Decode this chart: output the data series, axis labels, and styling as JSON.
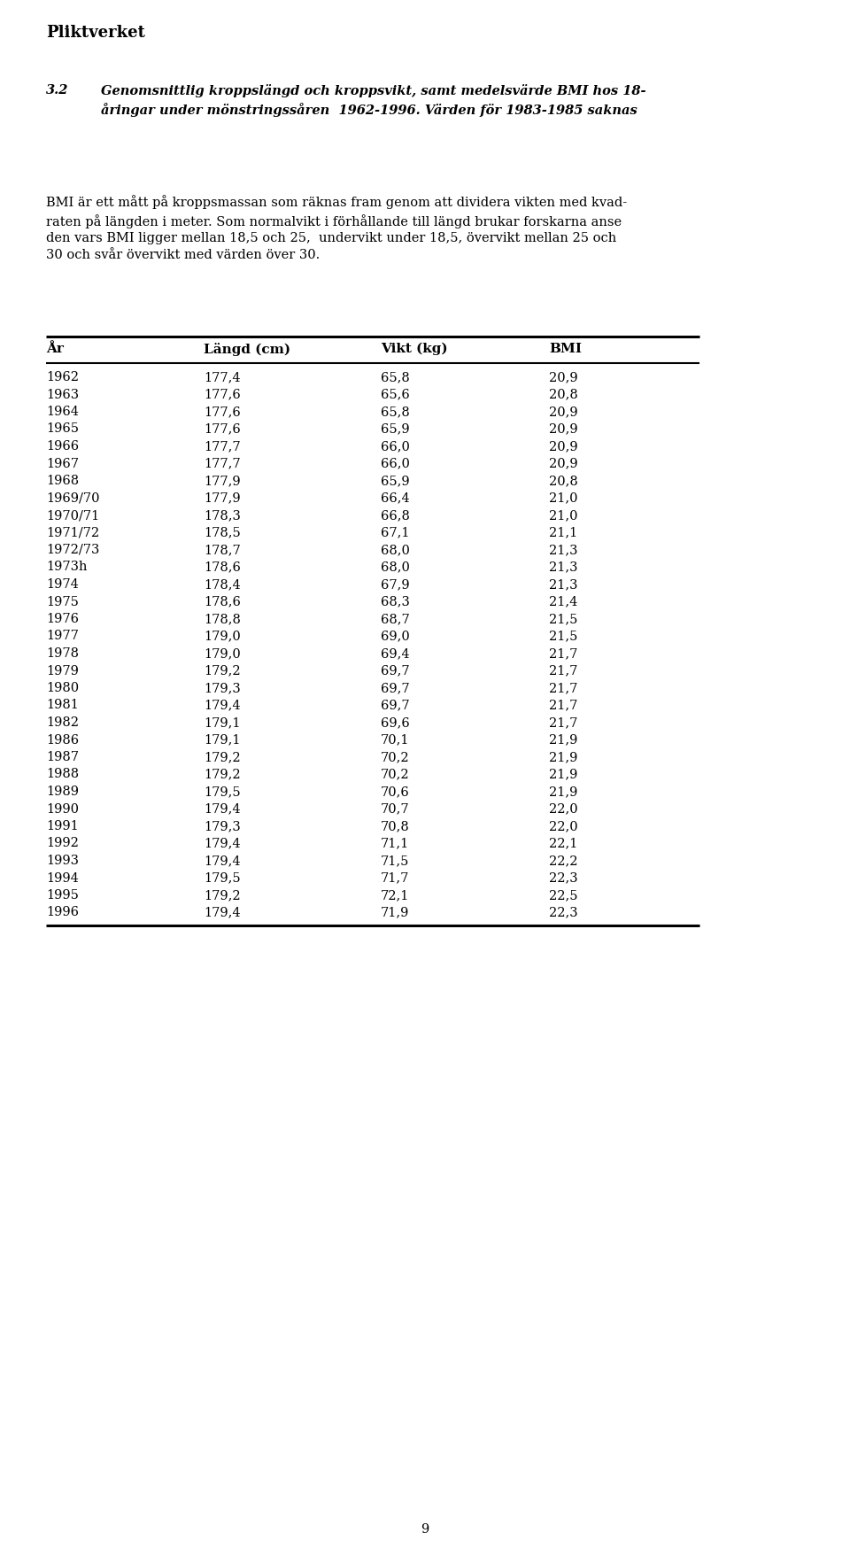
{
  "header": "Pliktverket",
  "title_num": "3.2",
  "title_text": "Genomsnittlig kroppslängd och kroppsvikt, samt medelsvärde BMI hos 18-\nåringar under mönstringssåren  1962-1996. Värden för 1983-1985 saknas",
  "body_text": "BMI är ett mått på kroppsmassan som räknas fram genom att dividera vikten med kvad-\nraten på längden i meter. Som normalvikt i förhållande till längd brukar forskarna anse\nden vars BMI ligger mellan 18,5 och 25,  undervikt under 18,5, övervikt mellan 25 och\n30 och svår övervikt med värden över 30.",
  "col_headers": [
    "År",
    "Längd (cm)",
    "Vikt (kg)",
    "BMI"
  ],
  "rows": [
    [
      "1962",
      "177,4",
      "65,8",
      "20,9"
    ],
    [
      "1963",
      "177,6",
      "65,6",
      "20,8"
    ],
    [
      "1964",
      "177,6",
      "65,8",
      "20,9"
    ],
    [
      "1965",
      "177,6",
      "65,9",
      "20,9"
    ],
    [
      "1966",
      "177,7",
      "66,0",
      "20,9"
    ],
    [
      "1967",
      "177,7",
      "66,0",
      "20,9"
    ],
    [
      "1968",
      "177,9",
      "65,9",
      "20,8"
    ],
    [
      "1969/70",
      "177,9",
      "66,4",
      "21,0"
    ],
    [
      "1970/71",
      "178,3",
      "66,8",
      "21,0"
    ],
    [
      "1971/72",
      "178,5",
      "67,1",
      "21,1"
    ],
    [
      "1972/73",
      "178,7",
      "68,0",
      "21,3"
    ],
    [
      "1973h",
      "178,6",
      "68,0",
      "21,3"
    ],
    [
      "1974",
      "178,4",
      "67,9",
      "21,3"
    ],
    [
      "1975",
      "178,6",
      "68,3",
      "21,4"
    ],
    [
      "1976",
      "178,8",
      "68,7",
      "21,5"
    ],
    [
      "1977",
      "179,0",
      "69,0",
      "21,5"
    ],
    [
      "1978",
      "179,0",
      "69,4",
      "21,7"
    ],
    [
      "1979",
      "179,2",
      "69,7",
      "21,7"
    ],
    [
      "1980",
      "179,3",
      "69,7",
      "21,7"
    ],
    [
      "1981",
      "179,4",
      "69,7",
      "21,7"
    ],
    [
      "1982",
      "179,1",
      "69,6",
      "21,7"
    ],
    [
      "1986",
      "179,1",
      "70,1",
      "21,9"
    ],
    [
      "1987",
      "179,2",
      "70,2",
      "21,9"
    ],
    [
      "1988",
      "179,2",
      "70,2",
      "21,9"
    ],
    [
      "1989",
      "179,5",
      "70,6",
      "21,9"
    ],
    [
      "1990",
      "179,4",
      "70,7",
      "22,0"
    ],
    [
      "1991",
      "179,3",
      "70,8",
      "22,0"
    ],
    [
      "1992",
      "179,4",
      "71,1",
      "22,1"
    ],
    [
      "1993",
      "179,4",
      "71,5",
      "22,2"
    ],
    [
      "1994",
      "179,5",
      "71,7",
      "22,3"
    ],
    [
      "1995",
      "179,2",
      "72,1",
      "22,5"
    ],
    [
      "1996",
      "179,4",
      "71,9",
      "22,3"
    ]
  ],
  "page_number": "9",
  "bg_color": "#ffffff",
  "text_color": "#000000"
}
